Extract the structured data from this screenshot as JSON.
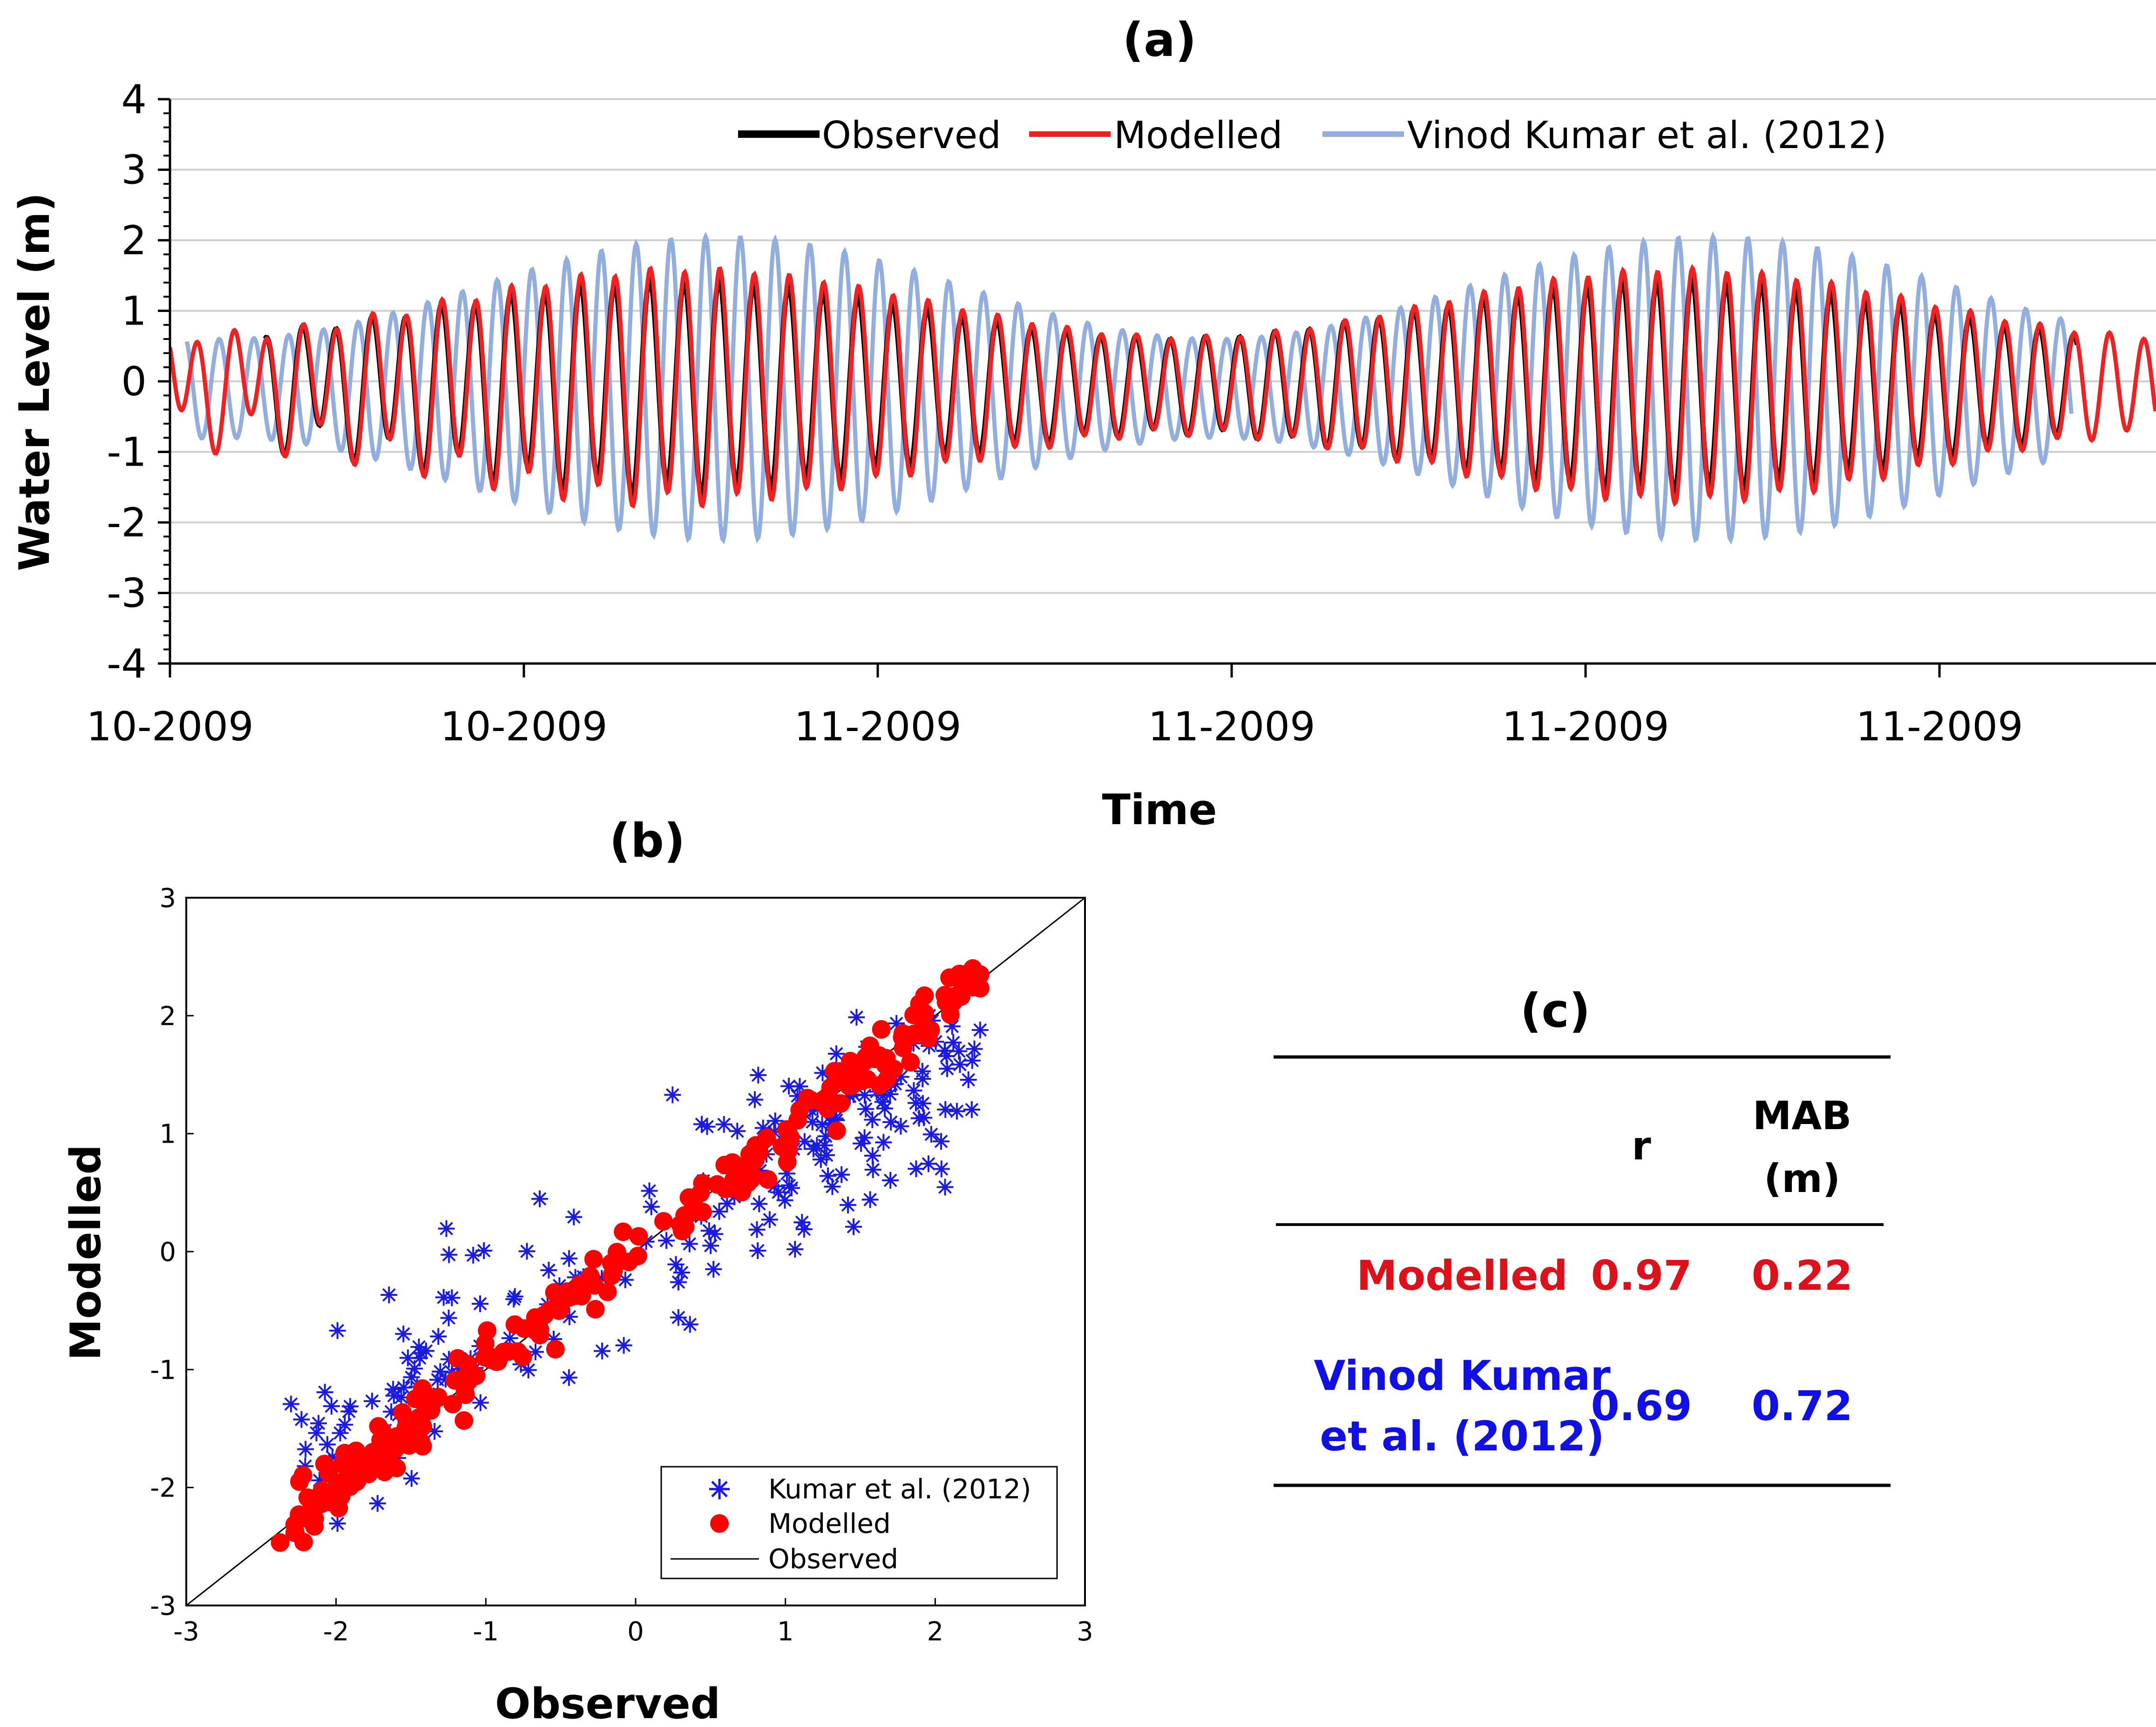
{
  "panel_a": {
    "title": "(a)",
    "colors": {
      "observed": "#000000",
      "modelled": "#ee2222",
      "vinod": "#92aede"
    },
    "chart_data": {
      "type": "line",
      "title": "(a)",
      "xlabel": "Time",
      "ylabel": "Water Level (m)",
      "ylim": [
        -4,
        4
      ],
      "yticks": [
        "-4",
        "-3",
        "-2",
        "-1",
        "0",
        "1",
        "2",
        "3",
        "4"
      ],
      "xticks": [
        "10-2009",
        "10-2009",
        "11-2009",
        "11-2009",
        "11-2009",
        "11-2009"
      ],
      "xlim_hours": [
        0,
        710
      ],
      "series": [
        {
          "name": "Observed",
          "start_hour": 34,
          "end_hour": 682,
          "note": "semi-diurnal tide, ~12.42 h period, amplitude 0.5-2.2 m"
        },
        {
          "name": "Modelled",
          "start_hour": 0,
          "end_hour": 710,
          "note": "semi-diurnal tide, ~12.42 h period, amplitude 0.5-2.4 m"
        },
        {
          "name": "Vinod Kumar et al. (2012)",
          "start_hour": 6,
          "end_hour": 680,
          "note": "semi-diurnal tide, phase-shifted ~5 h, amplitude 0.6-2.8 m"
        }
      ]
    },
    "legend": [
      "Observed",
      "Modelled",
      "Vinod Kumar et al. (2012)"
    ]
  },
  "panel_b": {
    "title": "(b)",
    "chart_data": {
      "type": "scatter",
      "title": "(b)",
      "xlabel": "Observed",
      "ylabel": "Modelled",
      "xlim": [
        -3,
        3
      ],
      "ylim": [
        -3,
        3
      ],
      "xticks": [
        "-3",
        "-2",
        "-1",
        "0",
        "1",
        "2",
        "3"
      ],
      "yticks": [
        "-3",
        "-2",
        "-1",
        "0",
        "1",
        "2",
        "3"
      ],
      "series": [
        {
          "name": "Kumar et al. (2012)",
          "marker": "asterisk",
          "color": "#1a1ae6",
          "r": 0.69,
          "count": 230
        },
        {
          "name": "Modelled",
          "marker": "circle",
          "color": "#ff0000",
          "r": 0.97,
          "count": 240
        },
        {
          "name": "Observed",
          "marker": "line",
          "color": "#000000",
          "note": "1:1 line"
        }
      ]
    },
    "legend": [
      "Kumar et al. (2012)",
      "Modelled",
      "Observed"
    ]
  },
  "panel_c": {
    "title": "(c)",
    "header": {
      "r": "r",
      "mab_line1": "MAB",
      "mab_line2": "(m)"
    },
    "rows": [
      {
        "label_line1": "Modelled",
        "label_line2": "",
        "r": "0.97",
        "mab": "0.22",
        "color": "#e0101a"
      },
      {
        "label_line1": "Vinod Kumar",
        "label_line2": "et al. (2012)",
        "r": "0.69",
        "mab": "0.72",
        "color": "#1010e6"
      }
    ]
  }
}
